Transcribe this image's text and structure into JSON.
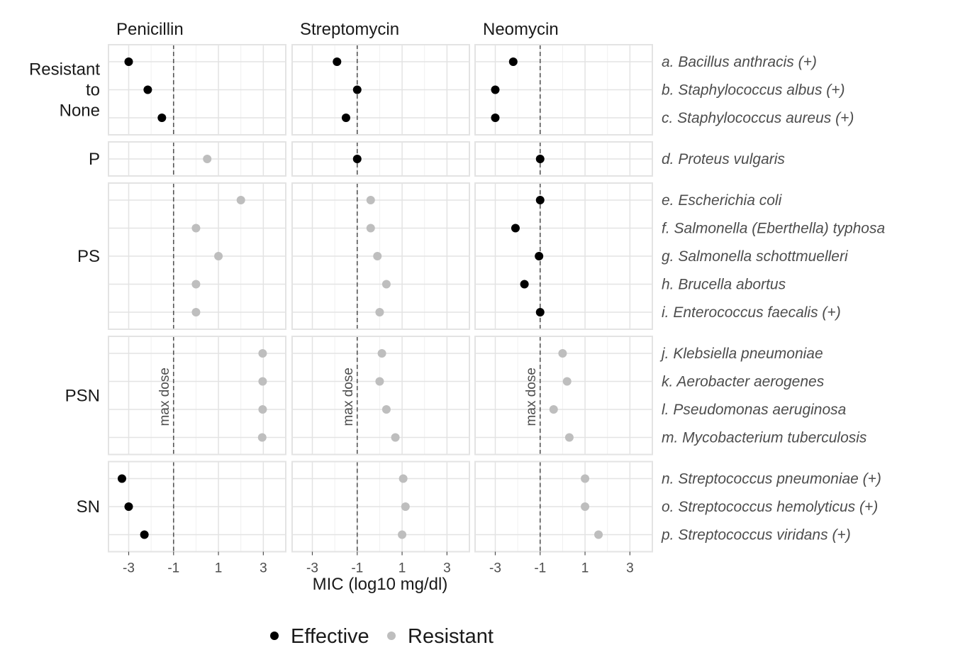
{
  "chart_data": {
    "type": "scatter",
    "x_label": "MIC (log10 mg/dl)",
    "x_ticks": [
      -3,
      -1,
      1,
      3
    ],
    "x_tick_labels": [
      "-3",
      "-1",
      "1",
      "3"
    ],
    "xlim": [
      -3.9,
      4.0
    ],
    "reference_line": {
      "x": -1,
      "label": "max dose",
      "style": "dashed"
    },
    "grid": true,
    "colors": {
      "Effective": "#000000",
      "Resistant": "#bebebe"
    },
    "legend": {
      "placement": "bottom",
      "entries": [
        "Effective",
        "Resistant"
      ]
    },
    "antibiotics": [
      "Penicillin",
      "Streptomycin",
      "Neomycin"
    ],
    "groups": [
      {
        "label": "Resistant\nto\nNone",
        "label_lines": [
          "Resistant",
          "to",
          "None"
        ],
        "bacteria": [
          {
            "name": "a. Bacillus anthracis (+)",
            "mic": [
              -3.0,
              -1.9,
              -2.2
            ],
            "status": [
              "Effective",
              "Effective",
              "Effective"
            ]
          },
          {
            "name": "b. Staphylococcus albus (+)",
            "mic": [
              -2.15,
              -1.0,
              -3.0
            ],
            "status": [
              "Effective",
              "Effective",
              "Effective"
            ]
          },
          {
            "name": "c. Staphylococcus aureus (+)",
            "mic": [
              -1.52,
              -1.5,
              -3.0
            ],
            "status": [
              "Effective",
              "Effective",
              "Effective"
            ]
          }
        ]
      },
      {
        "label": "P",
        "label_lines": [
          "P"
        ],
        "bacteria": [
          {
            "name": "d. Proteus vulgaris",
            "mic": [
              0.5,
              -1.0,
              -1.0
            ],
            "status": [
              "Resistant",
              "Effective",
              "Effective"
            ]
          }
        ]
      },
      {
        "label": "PS",
        "label_lines": [
          "PS"
        ],
        "bacteria": [
          {
            "name": "e. Escherichia coli",
            "mic": [
              2.0,
              -0.4,
              -1.0
            ],
            "status": [
              "Resistant",
              "Resistant",
              "Effective"
            ]
          },
          {
            "name": "f. Salmonella (Eberthella) typhosa",
            "mic": [
              0.0,
              -0.4,
              -2.1
            ],
            "status": [
              "Resistant",
              "Resistant",
              "Effective"
            ]
          },
          {
            "name": "g. Salmonella schottmuelleri",
            "mic": [
              1.0,
              -0.1,
              -1.05
            ],
            "status": [
              "Resistant",
              "Resistant",
              "Effective"
            ]
          },
          {
            "name": "h. Brucella abortus",
            "mic": [
              0.0,
              0.3,
              -1.7
            ],
            "status": [
              "Resistant",
              "Resistant",
              "Effective"
            ]
          },
          {
            "name": "i. Enterococcus faecalis (+)",
            "mic": [
              0.0,
              0.0,
              -1.0
            ],
            "status": [
              "Resistant",
              "Resistant",
              "Effective"
            ]
          }
        ]
      },
      {
        "label": "PSN",
        "label_lines": [
          "PSN"
        ],
        "bacteria": [
          {
            "name": "j. Klebsiella pneumoniae",
            "mic": [
              2.97,
              0.1,
              0.0
            ],
            "status": [
              "Resistant",
              "Resistant",
              "Resistant"
            ]
          },
          {
            "name": "k. Aerobacter aerogenes",
            "mic": [
              2.97,
              0.0,
              0.2
            ],
            "status": [
              "Resistant",
              "Resistant",
              "Resistant"
            ]
          },
          {
            "name": "l. Pseudomonas aeruginosa",
            "mic": [
              2.97,
              0.3,
              -0.4
            ],
            "status": [
              "Resistant",
              "Resistant",
              "Resistant"
            ]
          },
          {
            "name": "m. Mycobacterium tuberculosis",
            "mic": [
              2.95,
              0.7,
              0.3
            ],
            "status": [
              "Resistant",
              "Resistant",
              "Resistant"
            ]
          }
        ]
      },
      {
        "label": "SN",
        "label_lines": [
          "SN"
        ],
        "bacteria": [
          {
            "name": "n. Streptococcus pneumoniae (+)",
            "mic": [
              -3.3,
              1.05,
              1.0
            ],
            "status": [
              "Effective",
              "Resistant",
              "Resistant"
            ]
          },
          {
            "name": "o. Streptococcus hemolyticus (+)",
            "mic": [
              -3.0,
              1.15,
              1.0
            ],
            "status": [
              "Effective",
              "Resistant",
              "Resistant"
            ]
          },
          {
            "name": "p. Streptococcus viridans (+)",
            "mic": [
              -2.3,
              1.0,
              1.6
            ],
            "status": [
              "Effective",
              "Resistant",
              "Resistant"
            ]
          }
        ]
      }
    ]
  }
}
